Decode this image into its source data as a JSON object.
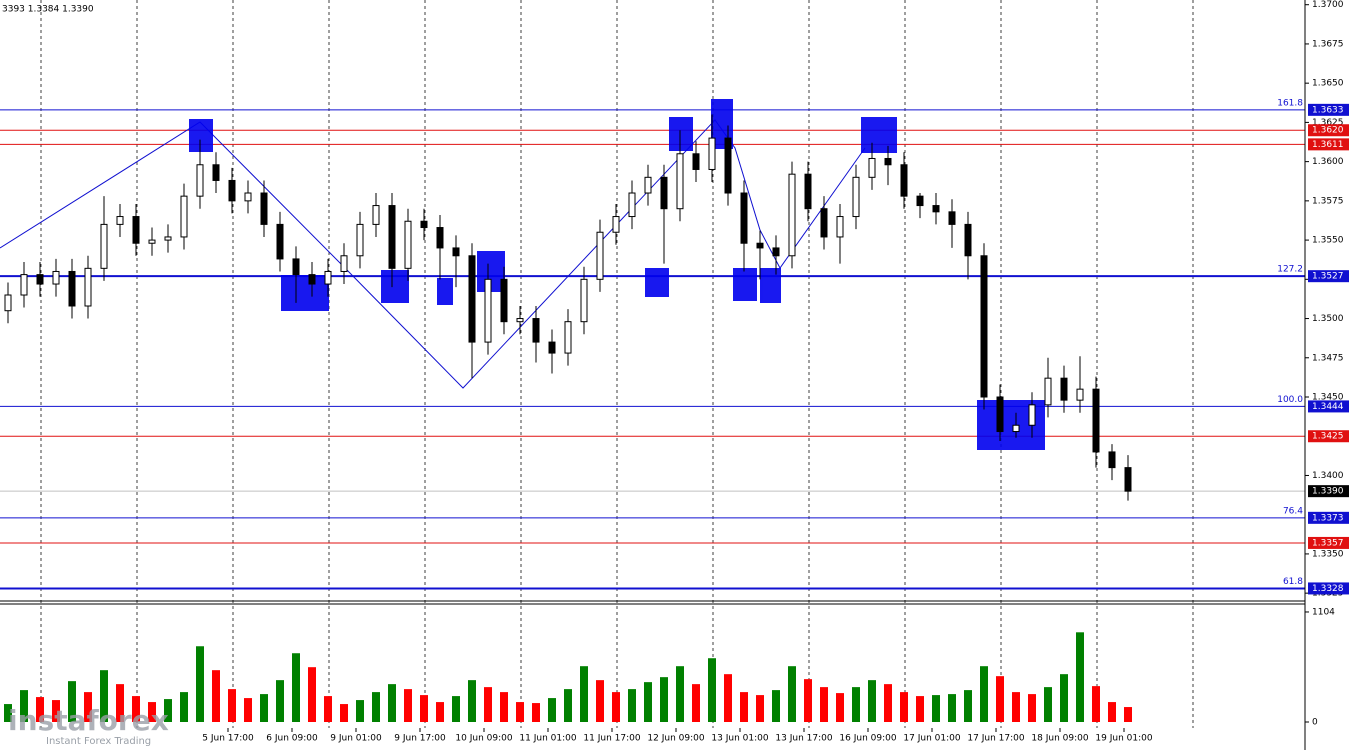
{
  "chart_data": {
    "type": "candlestick",
    "annotation": "3393 1.3384 1.3390",
    "watermark": "instaforex",
    "watermark_sub": "Instant Forex Trading",
    "xlim": [
      -0.5,
      81.0625
    ],
    "ylim": [
      1.332,
      1.3703
    ],
    "xgrid": [
      2.0625,
      8.0625,
      14.0625,
      20.0625,
      26.0625,
      32.0625,
      38.0625,
      44.0625,
      50.0625,
      56.0625,
      62.0625,
      68.0625,
      74.0625
    ],
    "xticks": [
      {
        "value": 13.75,
        "label": "5 Jun 17:00"
      },
      {
        "value": 17.75,
        "label": "6 Jun 09:00"
      },
      {
        "value": 21.75,
        "label": "9 Jun 01:00"
      },
      {
        "value": 25.75,
        "label": "9 Jun 17:00"
      },
      {
        "value": 29.75,
        "label": "10 Jun 09:00"
      },
      {
        "value": 33.75,
        "label": "11 Jun 01:00"
      },
      {
        "value": 37.75,
        "label": "11 Jun 17:00"
      },
      {
        "value": 41.75,
        "label": "12 Jun 09:00"
      },
      {
        "value": 45.75,
        "label": "13 Jun 01:00"
      },
      {
        "value": 49.75,
        "label": "13 Jun 17:00"
      },
      {
        "value": 53.75,
        "label": "16 Jun 09:00"
      },
      {
        "value": 57.75,
        "label": "17 Jun 01:00"
      },
      {
        "value": 61.75,
        "label": "17 Jun 17:00"
      },
      {
        "value": 65.75,
        "label": "18 Jun 09:00"
      },
      {
        "value": 69.75,
        "label": "19 Jun 01:00"
      }
    ],
    "yticks": [
      {
        "value": 1.37,
        "label": "1.3700"
      },
      1.3675,
      {
        "value": 1.365,
        "label": "1.3650"
      },
      1.3625,
      {
        "value": 1.36,
        "label": "1.3600"
      },
      1.3575,
      {
        "value": 1.355,
        "label": "1.3550"
      },
      1.3525,
      {
        "value": 1.35,
        "label": "1.3500"
      },
      1.3475,
      {
        "value": 1.345,
        "label": "1.3450"
      },
      {
        "value": 1.34,
        "label": "1.3400"
      },
      {
        "value": 1.335,
        "label": "1.3350"
      },
      1.3325
    ],
    "levels": [
      {
        "price": 1.3633,
        "color": "#1010d0",
        "fib": "161.8"
      },
      {
        "price": {
          "value": 1.362,
          "label": "1.3620"
        },
        "color": "#e01010"
      },
      {
        "price": 1.3611,
        "color": "#e01010"
      },
      {
        "price": 1.3527,
        "color": "#1010d0",
        "fib": "127.2"
      },
      {
        "price": 1.3444,
        "color": "#1010d0",
        "fib": "100.0"
      },
      {
        "price": 1.3425,
        "color": "#e01010"
      },
      {
        "price": {
          "value": 1.339,
          "label": "1.3390"
        },
        "color": "#000000"
      },
      {
        "price": 1.3373,
        "color": "#1010d0",
        "fib": "76.4"
      },
      {
        "price": 1.3357,
        "color": "#e01010"
      },
      {
        "price": 1.3328,
        "color": "#1010d0",
        "fib": "61.8"
      }
    ],
    "open": [
      1.3505,
      1.3515,
      1.3528,
      1.3522,
      1.353,
      1.3508,
      1.3532,
      1.356,
      1.3565,
      1.3548,
      1.355,
      1.3552,
      1.3578,
      1.3598,
      1.3588,
      1.3575,
      1.358,
      1.356,
      1.3538,
      1.3528,
      1.3522,
      1.353,
      1.354,
      1.356,
      1.3572,
      1.3532,
      1.3562,
      1.3558,
      1.3545,
      1.354,
      1.3485,
      1.3525,
      1.3498,
      1.35,
      1.3485,
      1.3478,
      1.3498,
      1.3525,
      1.3555,
      1.3565,
      1.358,
      1.359,
      1.357,
      1.3605,
      1.3595,
      1.3615,
      1.358,
      1.3548,
      1.3545,
      1.354,
      1.3592,
      1.357,
      1.3552,
      1.3565,
      1.359,
      1.3602,
      1.3598,
      1.3578,
      1.3572,
      1.3568,
      1.356,
      1.354,
      1.345,
      1.3428,
      1.3432,
      1.3445,
      1.3462,
      1.3448,
      1.3455,
      1.3415,
      1.3405
    ],
    "high": [
      1.3523,
      1.3536,
      1.3536,
      1.3538,
      1.3538,
      1.354,
      1.3578,
      1.3573,
      1.3573,
      1.3558,
      1.356,
      1.3586,
      1.3614,
      1.3606,
      1.3596,
      1.3588,
      1.3588,
      1.3568,
      1.3546,
      1.3536,
      1.3538,
      1.3548,
      1.3568,
      1.358,
      1.358,
      1.357,
      1.357,
      1.3566,
      1.3553,
      1.3548,
      1.3535,
      1.3533,
      1.3508,
      1.3508,
      1.3493,
      1.3506,
      1.3533,
      1.3563,
      1.3573,
      1.3588,
      1.3598,
      1.3598,
      1.362,
      1.3613,
      1.363,
      1.3623,
      1.3588,
      1.3556,
      1.3553,
      1.36,
      1.36,
      1.3578,
      1.3573,
      1.3598,
      1.3612,
      1.361,
      1.3606,
      1.358,
      1.358,
      1.3576,
      1.3568,
      1.3548,
      1.3458,
      1.344,
      1.3453,
      1.3475,
      1.347,
      1.3476,
      1.3463,
      1.342,
      1.3413
    ],
    "low": [
      1.3497,
      1.3507,
      1.3514,
      1.3514,
      1.35,
      1.35,
      1.3524,
      1.3552,
      1.354,
      1.354,
      1.3542,
      1.3544,
      1.357,
      1.358,
      1.3567,
      1.3567,
      1.3552,
      1.353,
      1.351,
      1.3514,
      1.3514,
      1.3522,
      1.3532,
      1.3552,
      1.352,
      1.3524,
      1.355,
      1.3525,
      1.352,
      1.3462,
      1.3477,
      1.349,
      1.349,
      1.3472,
      1.3465,
      1.347,
      1.349,
      1.3517,
      1.3547,
      1.3557,
      1.3572,
      1.3535,
      1.3562,
      1.3587,
      1.3587,
      1.3572,
      1.353,
      1.3525,
      1.3528,
      1.3532,
      1.3562,
      1.3544,
      1.3535,
      1.3557,
      1.3582,
      1.3585,
      1.357,
      1.3564,
      1.356,
      1.3545,
      1.3525,
      1.3442,
      1.3422,
      1.3424,
      1.3424,
      1.3437,
      1.344,
      1.344,
      1.3405,
      1.3397,
      1.3384
    ],
    "close": [
      1.3515,
      1.3528,
      1.3522,
      1.353,
      1.3508,
      1.3532,
      1.356,
      1.3565,
      1.3548,
      1.355,
      1.3552,
      1.3578,
      1.3598,
      1.3588,
      1.3575,
      1.358,
      1.356,
      1.3538,
      1.3528,
      1.3522,
      1.353,
      1.354,
      1.356,
      1.3572,
      1.3532,
      1.3562,
      1.3558,
      1.3545,
      1.354,
      1.3485,
      1.3525,
      1.3498,
      1.35,
      1.3485,
      1.3478,
      1.3498,
      1.3525,
      1.3555,
      1.3565,
      1.358,
      1.359,
      1.357,
      1.3605,
      1.3595,
      1.3615,
      1.358,
      1.3548,
      1.3545,
      1.354,
      1.3592,
      1.357,
      1.3552,
      1.3565,
      1.359,
      1.3602,
      1.3598,
      1.3578,
      1.3572,
      1.3568,
      1.356,
      1.354,
      1.345,
      1.3428,
      1.3432,
      1.3445,
      1.3462,
      1.3448,
      1.3455,
      1.3415,
      1.3405,
      1.339
    ],
    "volume": [
      180,
      320,
      250,
      220,
      410,
      300,
      520,
      380,
      260,
      200,
      230,
      300,
      760,
      520,
      330,
      240,
      280,
      420,
      690,
      550,
      260,
      180,
      220,
      300,
      380,
      330,
      270,
      200,
      260,
      420,
      350,
      300,
      200,
      190,
      240,
      330,
      560,
      420,
      300,
      330,
      400,
      450,
      560,
      380,
      640,
      480,
      300,
      270,
      320,
      560,
      430,
      350,
      290,
      350,
      420,
      380,
      300,
      260,
      270,
      280,
      320,
      560,
      460,
      300,
      280,
      350,
      480,
      900,
      360,
      200,
      150
    ],
    "volume_ylim": [
      0,
      1184
    ],
    "volume_yticks": [
      1104,
      0
    ],
    "volume_colors": [
      "#008000",
      "#ff0000"
    ]
  }
}
